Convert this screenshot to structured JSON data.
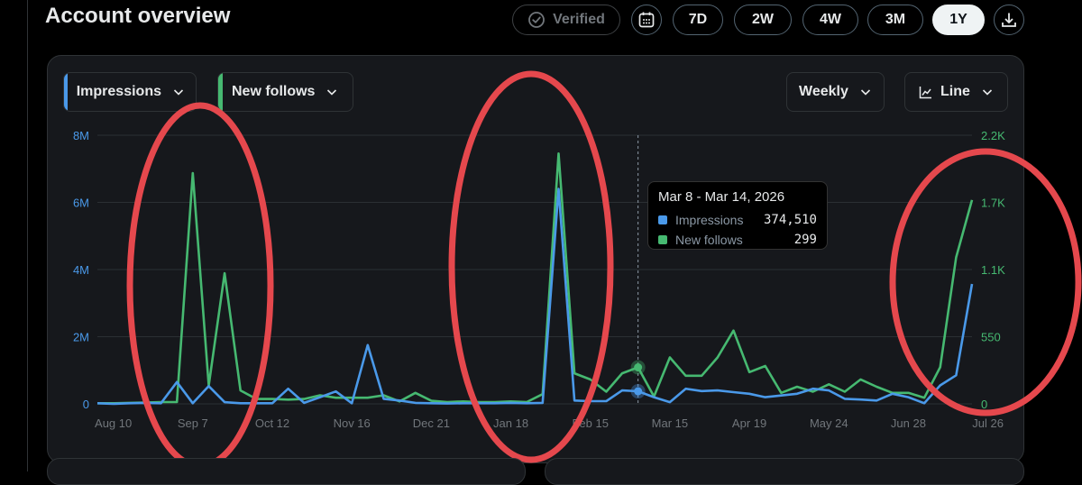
{
  "header": {
    "title": "Account overview"
  },
  "toolbar": {
    "verified_label": "Verified",
    "ranges": [
      "7D",
      "2W",
      "4W",
      "3M",
      "1Y"
    ],
    "active_range": "1Y",
    "icons": [
      "calendar-icon",
      "download-icon"
    ]
  },
  "controls": {
    "metric1": {
      "label": "Impressions",
      "color": "#4a99e9"
    },
    "metric2": {
      "label": "New follows",
      "color": "#46b971"
    },
    "interval": "Weekly",
    "chart_type": "Line"
  },
  "tooltip": {
    "title": "Mar 8 - Mar 14, 2026",
    "rows": [
      {
        "name": "Impressions",
        "value": "374,510"
      },
      {
        "name": "New follows",
        "value": "299"
      }
    ]
  },
  "chart_data": {
    "type": "line",
    "title": "",
    "xlabel": "",
    "ylabel": "",
    "x_tick_labels": [
      "Aug 10",
      "Sep 7",
      "Oct 12",
      "Nov 16",
      "Dec 21",
      "Jan 18",
      "Feb 15",
      "Mar 15",
      "Apr 19",
      "May 24",
      "Jun 28",
      "Jul 26"
    ],
    "y_left_ticks": [
      "0",
      "2M",
      "4M",
      "6M",
      "8M"
    ],
    "y_left_range": [
      0,
      8000000
    ],
    "y_right_ticks": [
      "0",
      "550",
      "1.1K",
      "1.7K",
      "2.2K"
    ],
    "y_right_range": [
      0,
      2200
    ],
    "grid": true,
    "highlighted_week": "Mar 8 - Mar 14, 2026",
    "series": [
      {
        "name": "Impressions",
        "axis": "left",
        "color": "#4a99e9",
        "values": [
          20000,
          0,
          20000,
          30000,
          20000,
          650000,
          20000,
          530000,
          50000,
          20000,
          20000,
          20000,
          450000,
          30000,
          200000,
          370000,
          20000,
          1750000,
          150000,
          100000,
          30000,
          20000,
          10000,
          20000,
          20000,
          20000,
          30000,
          20000,
          30000,
          6400000,
          100000,
          80000,
          80000,
          400000,
          374510,
          200000,
          50000,
          450000,
          380000,
          400000,
          350000,
          300000,
          200000,
          250000,
          300000,
          450000,
          400000,
          150000,
          130000,
          100000,
          300000,
          200000,
          20000,
          550000,
          850000,
          3570000
        ]
      },
      {
        "name": "New follows",
        "axis": "right",
        "color": "#46b971",
        "values": [
          5,
          5,
          8,
          10,
          15,
          15,
          1890,
          150,
          1070,
          110,
          40,
          40,
          35,
          40,
          70,
          50,
          50,
          50,
          70,
          20,
          90,
          25,
          15,
          20,
          15,
          15,
          20,
          15,
          80,
          2050,
          250,
          200,
          100,
          250,
          299,
          60,
          380,
          230,
          230,
          380,
          600,
          260,
          310,
          90,
          140,
          100,
          160,
          100,
          200,
          140,
          90,
          90,
          50,
          300,
          1200,
          1670
        ]
      }
    ]
  }
}
